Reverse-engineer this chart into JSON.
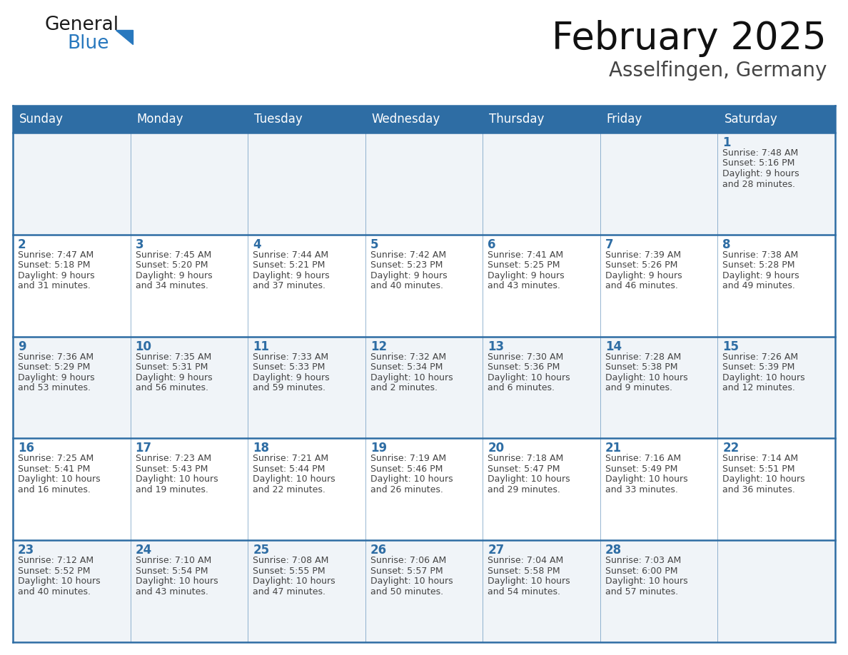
{
  "title": "February 2025",
  "subtitle": "Asselfingen, Germany",
  "days_of_week": [
    "Sunday",
    "Monday",
    "Tuesday",
    "Wednesday",
    "Thursday",
    "Friday",
    "Saturday"
  ],
  "header_bg": "#2E6DA4",
  "header_text": "#FFFFFF",
  "cell_bg_odd": "#F0F4F8",
  "cell_bg_even": "#FFFFFF",
  "border_color": "#2E6DA4",
  "day_number_color": "#2E6DA4",
  "cell_text_color": "#444444",
  "title_color": "#111111",
  "subtitle_color": "#444444",
  "logo_general_color": "#1a1a1a",
  "logo_blue_color": "#2878BE",
  "calendar_data": [
    [
      null,
      null,
      null,
      null,
      null,
      null,
      {
        "day": "1",
        "line1": "Sunrise: 7:48 AM",
        "line2": "Sunset: 5:16 PM",
        "line3": "Daylight: 9 hours",
        "line4": "and 28 minutes."
      }
    ],
    [
      {
        "day": "2",
        "line1": "Sunrise: 7:47 AM",
        "line2": "Sunset: 5:18 PM",
        "line3": "Daylight: 9 hours",
        "line4": "and 31 minutes."
      },
      {
        "day": "3",
        "line1": "Sunrise: 7:45 AM",
        "line2": "Sunset: 5:20 PM",
        "line3": "Daylight: 9 hours",
        "line4": "and 34 minutes."
      },
      {
        "day": "4",
        "line1": "Sunrise: 7:44 AM",
        "line2": "Sunset: 5:21 PM",
        "line3": "Daylight: 9 hours",
        "line4": "and 37 minutes."
      },
      {
        "day": "5",
        "line1": "Sunrise: 7:42 AM",
        "line2": "Sunset: 5:23 PM",
        "line3": "Daylight: 9 hours",
        "line4": "and 40 minutes."
      },
      {
        "day": "6",
        "line1": "Sunrise: 7:41 AM",
        "line2": "Sunset: 5:25 PM",
        "line3": "Daylight: 9 hours",
        "line4": "and 43 minutes."
      },
      {
        "day": "7",
        "line1": "Sunrise: 7:39 AM",
        "line2": "Sunset: 5:26 PM",
        "line3": "Daylight: 9 hours",
        "line4": "and 46 minutes."
      },
      {
        "day": "8",
        "line1": "Sunrise: 7:38 AM",
        "line2": "Sunset: 5:28 PM",
        "line3": "Daylight: 9 hours",
        "line4": "and 49 minutes."
      }
    ],
    [
      {
        "day": "9",
        "line1": "Sunrise: 7:36 AM",
        "line2": "Sunset: 5:29 PM",
        "line3": "Daylight: 9 hours",
        "line4": "and 53 minutes."
      },
      {
        "day": "10",
        "line1": "Sunrise: 7:35 AM",
        "line2": "Sunset: 5:31 PM",
        "line3": "Daylight: 9 hours",
        "line4": "and 56 minutes."
      },
      {
        "day": "11",
        "line1": "Sunrise: 7:33 AM",
        "line2": "Sunset: 5:33 PM",
        "line3": "Daylight: 9 hours",
        "line4": "and 59 minutes."
      },
      {
        "day": "12",
        "line1": "Sunrise: 7:32 AM",
        "line2": "Sunset: 5:34 PM",
        "line3": "Daylight: 10 hours",
        "line4": "and 2 minutes."
      },
      {
        "day": "13",
        "line1": "Sunrise: 7:30 AM",
        "line2": "Sunset: 5:36 PM",
        "line3": "Daylight: 10 hours",
        "line4": "and 6 minutes."
      },
      {
        "day": "14",
        "line1": "Sunrise: 7:28 AM",
        "line2": "Sunset: 5:38 PM",
        "line3": "Daylight: 10 hours",
        "line4": "and 9 minutes."
      },
      {
        "day": "15",
        "line1": "Sunrise: 7:26 AM",
        "line2": "Sunset: 5:39 PM",
        "line3": "Daylight: 10 hours",
        "line4": "and 12 minutes."
      }
    ],
    [
      {
        "day": "16",
        "line1": "Sunrise: 7:25 AM",
        "line2": "Sunset: 5:41 PM",
        "line3": "Daylight: 10 hours",
        "line4": "and 16 minutes."
      },
      {
        "day": "17",
        "line1": "Sunrise: 7:23 AM",
        "line2": "Sunset: 5:43 PM",
        "line3": "Daylight: 10 hours",
        "line4": "and 19 minutes."
      },
      {
        "day": "18",
        "line1": "Sunrise: 7:21 AM",
        "line2": "Sunset: 5:44 PM",
        "line3": "Daylight: 10 hours",
        "line4": "and 22 minutes."
      },
      {
        "day": "19",
        "line1": "Sunrise: 7:19 AM",
        "line2": "Sunset: 5:46 PM",
        "line3": "Daylight: 10 hours",
        "line4": "and 26 minutes."
      },
      {
        "day": "20",
        "line1": "Sunrise: 7:18 AM",
        "line2": "Sunset: 5:47 PM",
        "line3": "Daylight: 10 hours",
        "line4": "and 29 minutes."
      },
      {
        "day": "21",
        "line1": "Sunrise: 7:16 AM",
        "line2": "Sunset: 5:49 PM",
        "line3": "Daylight: 10 hours",
        "line4": "and 33 minutes."
      },
      {
        "day": "22",
        "line1": "Sunrise: 7:14 AM",
        "line2": "Sunset: 5:51 PM",
        "line3": "Daylight: 10 hours",
        "line4": "and 36 minutes."
      }
    ],
    [
      {
        "day": "23",
        "line1": "Sunrise: 7:12 AM",
        "line2": "Sunset: 5:52 PM",
        "line3": "Daylight: 10 hours",
        "line4": "and 40 minutes."
      },
      {
        "day": "24",
        "line1": "Sunrise: 7:10 AM",
        "line2": "Sunset: 5:54 PM",
        "line3": "Daylight: 10 hours",
        "line4": "and 43 minutes."
      },
      {
        "day": "25",
        "line1": "Sunrise: 7:08 AM",
        "line2": "Sunset: 5:55 PM",
        "line3": "Daylight: 10 hours",
        "line4": "and 47 minutes."
      },
      {
        "day": "26",
        "line1": "Sunrise: 7:06 AM",
        "line2": "Sunset: 5:57 PM",
        "line3": "Daylight: 10 hours",
        "line4": "and 50 minutes."
      },
      {
        "day": "27",
        "line1": "Sunrise: 7:04 AM",
        "line2": "Sunset: 5:58 PM",
        "line3": "Daylight: 10 hours",
        "line4": "and 54 minutes."
      },
      {
        "day": "28",
        "line1": "Sunrise: 7:03 AM",
        "line2": "Sunset: 6:00 PM",
        "line3": "Daylight: 10 hours",
        "line4": "and 57 minutes."
      },
      null
    ]
  ],
  "figsize": [
    11.88,
    9.18
  ],
  "dpi": 100
}
